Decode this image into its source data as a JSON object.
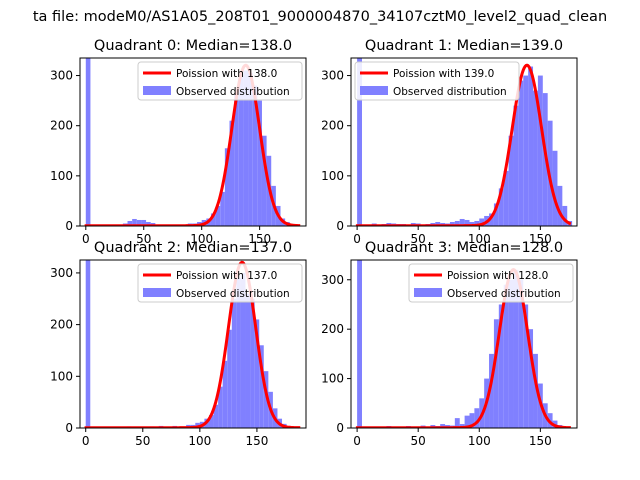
{
  "figure": {
    "suptitle": "ta file: modeM0/AS1A05_208T01_9000004870_34107cztM0_level2_quad_clean",
    "colors": {
      "fit": "#ff0000",
      "observed": "#8080ff",
      "legend_frame": "#cccccc"
    }
  },
  "chart_data": [
    {
      "type": "bar",
      "title": "Quadrant 0: Median=138.0",
      "legend": [
        "Poission with 138.0",
        "Observed distribution"
      ],
      "legend_position": "top-right",
      "xlim": [
        -5,
        190
      ],
      "ylim": [
        0,
        335
      ],
      "xticks": [
        0,
        50,
        100,
        150
      ],
      "yticks": [
        0,
        100,
        200,
        300
      ],
      "median": 138,
      "bin_width": 4,
      "series": [
        {
          "name": "Observed distribution",
          "x": [
            0,
            32,
            36,
            40,
            44,
            48,
            52,
            56,
            88,
            92,
            96,
            100,
            104,
            108,
            112,
            116,
            120,
            124,
            128,
            132,
            136,
            140,
            144,
            148,
            152,
            156,
            160,
            164,
            168,
            172,
            176,
            180
          ],
          "values": [
            335,
            5,
            10,
            14,
            12,
            12,
            8,
            6,
            5,
            5,
            8,
            12,
            15,
            25,
            40,
            68,
            155,
            210,
            265,
            300,
            310,
            305,
            280,
            250,
            180,
            140,
            80,
            40,
            15,
            8,
            4,
            2
          ]
        }
      ]
    },
    {
      "type": "bar",
      "title": "Quadrant 1: Median=139.0",
      "legend": [
        "Poission with 139.0",
        "Observed distribution"
      ],
      "legend_position": "top-left",
      "xlim": [
        -5,
        180
      ],
      "ylim": [
        0,
        335
      ],
      "xticks": [
        0,
        50,
        100,
        150
      ],
      "yticks": [
        0,
        100,
        200,
        300
      ],
      "median": 139,
      "bin_width": 4,
      "series": [
        {
          "name": "Observed distribution",
          "x": [
            0,
            12,
            16,
            20,
            24,
            28,
            32,
            36,
            40,
            44,
            48,
            52,
            56,
            60,
            64,
            68,
            72,
            76,
            80,
            84,
            88,
            92,
            96,
            100,
            104,
            108,
            112,
            116,
            120,
            124,
            128,
            132,
            136,
            140,
            144,
            148,
            152,
            156,
            160,
            164,
            168,
            172
          ],
          "values": [
            335,
            5,
            3,
            4,
            6,
            5,
            4,
            4,
            3,
            6,
            5,
            3,
            4,
            6,
            8,
            6,
            5,
            8,
            10,
            14,
            12,
            8,
            10,
            15,
            20,
            25,
            45,
            75,
            110,
            180,
            240,
            290,
            300,
            318,
            270,
            300,
            265,
            210,
            150,
            80,
            40,
            10
          ]
        }
      ]
    },
    {
      "type": "bar",
      "title": "Quadrant 2: Median=137.0",
      "legend": [
        "Poission with 137.0",
        "Observed distribution"
      ],
      "legend_position": "top-right",
      "xlim": [
        -5,
        193
      ],
      "ylim": [
        0,
        325
      ],
      "xticks": [
        0,
        50,
        100,
        150
      ],
      "yticks": [
        0,
        100,
        200,
        300
      ],
      "median": 137,
      "bin_width": 4,
      "series": [
        {
          "name": "Observed distribution",
          "x": [
            0,
            36,
            56,
            64,
            76,
            88,
            92,
            96,
            100,
            104,
            108,
            112,
            116,
            120,
            124,
            128,
            132,
            136,
            140,
            144,
            148,
            152,
            156,
            160,
            164,
            168,
            172,
            176,
            180
          ],
          "values": [
            325,
            3,
            3,
            4,
            4,
            6,
            6,
            10,
            12,
            18,
            25,
            45,
            80,
            130,
            190,
            250,
            290,
            300,
            260,
            250,
            210,
            160,
            110,
            70,
            38,
            18,
            8,
            4,
            2
          ]
        }
      ]
    },
    {
      "type": "bar",
      "title": "Quadrant 3: Median=128.0",
      "legend": [
        "Poission with 128.0",
        "Observed distribution"
      ],
      "legend_position": "top-right",
      "xlim": [
        -5,
        180
      ],
      "ylim": [
        0,
        340
      ],
      "xticks": [
        0,
        50,
        100,
        150
      ],
      "yticks": [
        0,
        100,
        200,
        300
      ],
      "median": 128,
      "bin_width": 4,
      "series": [
        {
          "name": "Observed distribution",
          "x": [
            0,
            24,
            28,
            40,
            52,
            60,
            64,
            68,
            72,
            76,
            80,
            84,
            88,
            92,
            96,
            100,
            104,
            108,
            112,
            116,
            120,
            124,
            128,
            132,
            136,
            140,
            144,
            148,
            152,
            156,
            160,
            164,
            168
          ],
          "values": [
            340,
            4,
            3,
            4,
            5,
            6,
            4,
            8,
            6,
            5,
            20,
            8,
            25,
            30,
            40,
            60,
            100,
            150,
            220,
            250,
            290,
            300,
            320,
            300,
            250,
            200,
            150,
            90,
            50,
            30,
            15,
            6,
            2
          ]
        }
      ]
    }
  ]
}
